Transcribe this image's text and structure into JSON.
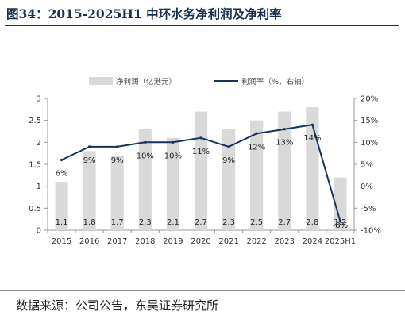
{
  "title": "图34：2015-2025H1 中环水务净利润及净利率",
  "source": "数据来源：公司公告，东吴证券研究所",
  "colors": {
    "bar": "#d9d9d9",
    "line": "#17335c",
    "axis": "#999999",
    "title": "#1b2f52"
  },
  "chart_data": {
    "type": "bar+line",
    "categories": [
      "2015",
      "2016",
      "2017",
      "2018",
      "2019",
      "2020",
      "2021",
      "2022",
      "2023",
      "2024",
      "2025H1"
    ],
    "series": [
      {
        "name": "净利润（亿港元）",
        "type": "bar",
        "axis": "left",
        "values": [
          1.1,
          1.8,
          1.7,
          2.3,
          2.1,
          2.7,
          2.3,
          2.5,
          2.7,
          2.8,
          1.2
        ],
        "labels": [
          "1.1",
          "1.8",
          "1.7",
          "2.3",
          "2.1",
          "2.7",
          "2.3",
          "2.5",
          "2.7",
          "2.8",
          "1.2"
        ]
      },
      {
        "name": "利润率（%，右轴）",
        "type": "line",
        "axis": "right",
        "values": [
          6,
          9,
          9,
          10,
          10,
          11,
          9,
          12,
          13,
          14,
          -8
        ],
        "labels": [
          "6%",
          "9%",
          "9%",
          "10%",
          "10%",
          "11%",
          "9%",
          "12%",
          "13%",
          "14%",
          "-8%"
        ]
      }
    ],
    "y_left": {
      "min": 0,
      "max": 3,
      "ticks": [
        "0",
        "0.5",
        "1",
        "1.5",
        "2",
        "2.5",
        "3"
      ]
    },
    "y_right": {
      "min": -10,
      "max": 20,
      "ticks": [
        "-10%",
        "-5%",
        "0%",
        "5%",
        "10%",
        "15%",
        "20%"
      ]
    },
    "grid": false,
    "legend_position": "top"
  }
}
